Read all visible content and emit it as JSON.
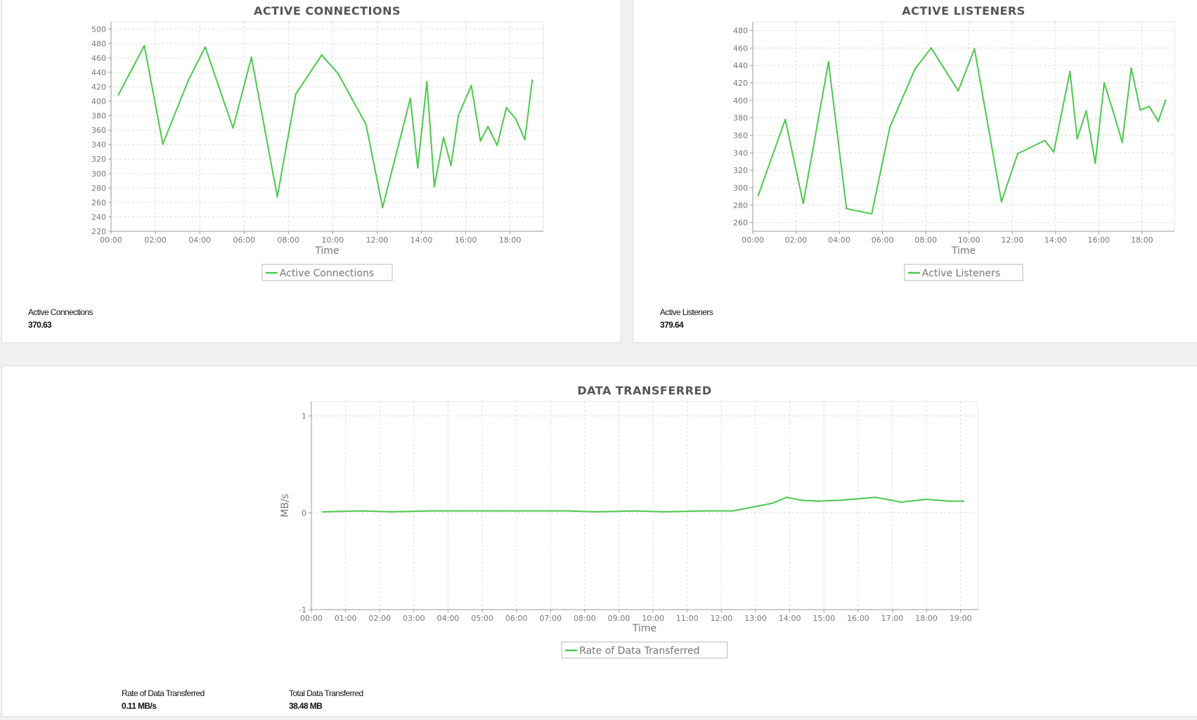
{
  "colors": {
    "series": "#4cc94c",
    "grid": "#dddddd",
    "axis": "#999999",
    "text": "#777777",
    "title": "#555555"
  },
  "panels": {
    "connections": {
      "metric_label": "Active Connections",
      "metric_value": "370.63"
    },
    "listeners": {
      "metric_label": "Active Listeners",
      "metric_value": "379.64"
    },
    "data": {
      "rate_label": "Rate of Data Transferred",
      "rate_value": "0.11 MB/s",
      "total_label": "Total Data Transferred",
      "total_value": "38.48 MB"
    }
  },
  "chart_data": [
    {
      "type": "line",
      "title": "ACTIVE CONNECTIONS",
      "xlabel": "Time",
      "ylabel": "",
      "xlim": [
        "00:00",
        "19:30"
      ],
      "ylim": [
        220,
        510
      ],
      "x_ticks": [
        "00:00",
        "02:00",
        "04:00",
        "06:00",
        "08:00",
        "10:00",
        "12:00",
        "14:00",
        "16:00",
        "18:00"
      ],
      "y_ticks": [
        220,
        240,
        260,
        280,
        300,
        320,
        340,
        360,
        380,
        400,
        420,
        440,
        460,
        480,
        500
      ],
      "grid": true,
      "legend": "bottom-center",
      "series": [
        {
          "name": "Active Connections",
          "x": [
            "00:20",
            "01:30",
            "02:20",
            "03:30",
            "04:15",
            "05:30",
            "06:20",
            "07:30",
            "08:20",
            "09:30",
            "10:15",
            "11:30",
            "12:15",
            "13:30",
            "13:50",
            "14:15",
            "14:35",
            "15:00",
            "15:20",
            "15:40",
            "16:15",
            "16:40",
            "17:00",
            "17:25",
            "17:50",
            "18:15",
            "18:40",
            "19:00"
          ],
          "y": [
            409,
            477,
            341,
            430,
            475,
            363,
            461,
            268,
            410,
            464,
            438,
            368,
            253,
            404,
            308,
            427,
            282,
            350,
            311,
            380,
            422,
            345,
            365,
            339,
            391,
            376,
            347,
            429
          ]
        }
      ]
    },
    {
      "type": "line",
      "title": "ACTIVE LISTENERS",
      "xlabel": "Time",
      "ylabel": "",
      "xlim": [
        "00:00",
        "19:30"
      ],
      "ylim": [
        250,
        490
      ],
      "x_ticks": [
        "00:00",
        "02:00",
        "04:00",
        "06:00",
        "08:00",
        "10:00",
        "12:00",
        "14:00",
        "16:00",
        "18:00"
      ],
      "y_ticks": [
        260,
        280,
        300,
        320,
        340,
        360,
        380,
        400,
        420,
        440,
        460,
        480
      ],
      "grid": true,
      "legend": "bottom-center",
      "series": [
        {
          "name": "Active Listeners",
          "x": [
            "00:15",
            "01:30",
            "02:20",
            "03:30",
            "04:20",
            "05:30",
            "06:20",
            "07:30",
            "08:15",
            "09:30",
            "10:15",
            "11:30",
            "12:15",
            "13:30",
            "13:55",
            "14:40",
            "15:00",
            "15:25",
            "15:50",
            "16:15",
            "16:40",
            "17:05",
            "17:30",
            "17:55",
            "18:20",
            "18:45",
            "19:05"
          ],
          "y": [
            291,
            378,
            282,
            444,
            276,
            270,
            369,
            436,
            460,
            411,
            459,
            284,
            339,
            354,
            341,
            433,
            356,
            388,
            328,
            420,
            387,
            352,
            437,
            389,
            393,
            376,
            400
          ]
        }
      ]
    },
    {
      "type": "line",
      "title": "DATA TRANSFERRED",
      "xlabel": "Time",
      "ylabel": "MB/s",
      "xlim": [
        "00:00",
        "19:30"
      ],
      "ylim": [
        -1,
        1.15
      ],
      "x_ticks": [
        "00:00",
        "01:00",
        "02:00",
        "03:00",
        "04:00",
        "05:00",
        "06:00",
        "07:00",
        "08:00",
        "09:00",
        "10:00",
        "11:00",
        "12:00",
        "13:00",
        "14:00",
        "15:00",
        "16:00",
        "17:00",
        "18:00",
        "19:00"
      ],
      "y_ticks": [
        -1,
        0,
        1
      ],
      "grid": true,
      "legend": "bottom-center",
      "series": [
        {
          "name": "Rate of Data Transferred",
          "x": [
            "00:20",
            "01:30",
            "02:20",
            "03:30",
            "04:20",
            "05:30",
            "06:20",
            "07:30",
            "08:20",
            "09:30",
            "10:20",
            "11:30",
            "12:20",
            "13:30",
            "13:55",
            "14:20",
            "14:50",
            "15:30",
            "16:10",
            "16:30",
            "16:50",
            "17:15",
            "18:00",
            "18:40",
            "19:05"
          ],
          "y": [
            0.01,
            0.02,
            0.01,
            0.02,
            0.02,
            0.02,
            0.02,
            0.02,
            0.01,
            0.02,
            0.01,
            0.02,
            0.02,
            0.1,
            0.16,
            0.13,
            0.12,
            0.13,
            0.15,
            0.16,
            0.14,
            0.11,
            0.14,
            0.12,
            0.12
          ]
        }
      ]
    }
  ]
}
